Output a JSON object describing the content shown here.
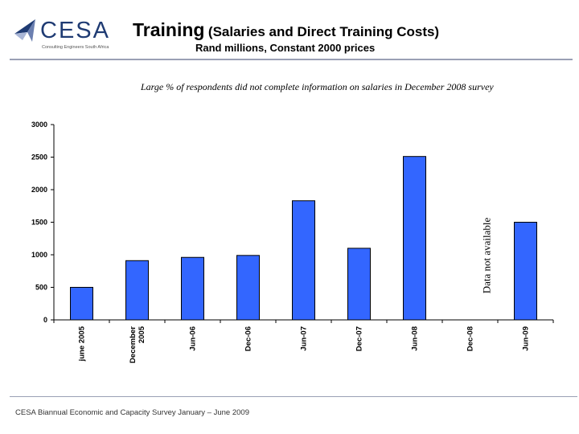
{
  "logo": {
    "text": "CESA",
    "tagline": "Consulting Engineers South Africa"
  },
  "header": {
    "title_main": "Training",
    "title_paren": "(Salaries and Direct Training Costs)",
    "subtitle": "Rand millions, Constant 2000 prices"
  },
  "note": "Large % of respondents did not complete information on salaries in December 2008 survey",
  "footer": "CESA Biannual Economic and Capacity Survey January – June 2009",
  "colors": {
    "bar": "#3366ff",
    "axis": "#000000"
  },
  "chart_data": {
    "type": "bar",
    "title": "Training (Salaries and Direct Training Costs)",
    "ylabel": "Rand millions, Constant 2000 prices",
    "ylim": [
      0,
      3000
    ],
    "yticks": [
      0,
      500,
      1000,
      1500,
      2000,
      2500,
      3000
    ],
    "categories": [
      "june 2005",
      "December 2005",
      "Jun-06",
      "Dec-06",
      "Jun-07",
      "Dec-07",
      "Jun-08",
      "Dec-08",
      "Jun-09"
    ],
    "values": [
      500,
      910,
      960,
      990,
      1830,
      1100,
      2510,
      null,
      1500
    ],
    "annotation": {
      "category": "Dec-08",
      "text": "Data not available"
    }
  }
}
